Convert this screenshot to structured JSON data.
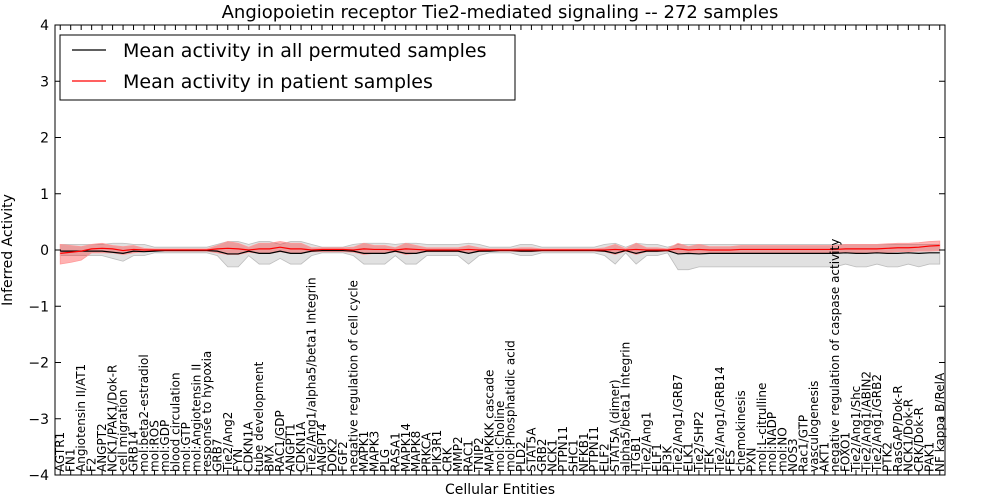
{
  "chart_data": {
    "type": "line",
    "title": "Angiopoietin receptor Tie2-mediated signaling -- 272 samples",
    "xlabel": "Cellular Entities",
    "ylabel": "Inferred Activity",
    "ylim": [
      -4,
      4
    ],
    "yticks": [
      "4",
      "3",
      "2",
      "1",
      "0",
      "−1",
      "−2",
      "−3",
      "−4"
    ],
    "legend_position": "top-left",
    "categories": [
      "AGTR1",
      "FN1",
      "Angiotensin II/AT1",
      "F2",
      "ANGPT2",
      "NCK1/PAK1/Dok-R",
      "cell migration",
      "GRB14",
      "mol:beta2-estradiol",
      "mol:ROS",
      "mol:GDP",
      "blood circulation",
      "mol:GTP",
      "mol:Angiotensin II",
      "response to hypoxia",
      "GRB7",
      "Tie2/Ang2",
      "FYN",
      "CDKN1A",
      "tube development",
      "BMX",
      "RAC1/GDP",
      "ANGPT1",
      "CDKN1A",
      "Tie2/Ang1/alpha5/beta1 Integrin",
      "ANGPT4",
      "DOK2",
      "FGF2",
      "negative regulation of cell cycle",
      "MAPK1",
      "MAPK3",
      "PLG",
      "RASA1",
      "MAPK14",
      "MAPK8",
      "PRKCA",
      "PIK3R1",
      "CRK",
      "MMP2",
      "RAC1",
      "TNIP2",
      "MAPKKK cascade",
      "mol:Choline",
      "mol:Phosphatidic acid",
      "PLD2",
      "STAT5A",
      "GRB2",
      "NCK1",
      "PTPN11",
      "SHC1",
      "NFKB1",
      "PTPN11",
      "ELF2",
      "STAT5A (dimer)",
      "alpha5/beta1 Integrin",
      "ITGB1",
      "Tie2/Ang1",
      "ELF1",
      "PI3K",
      "Tie2/Ang1/GRB7",
      "ELK1",
      "Tie2/SHP2",
      "TEK",
      "Tie2/Ang1/GRB14",
      "FES",
      "chemokinesis",
      "PXN",
      "mol:L-citrulline",
      "mol:NADP",
      "mol:NO",
      "NOS3",
      "Rac1/GTP",
      "vasculogenesis",
      "AKT1",
      "negative regulation of caspase activity",
      "FOXO1",
      "Tie2/Ang1/Shc",
      "Tie2/Ang1/ABIN2",
      "Tie2/Ang1/GRB2",
      "PTK2",
      "RasGAP/Dok-R",
      "NCK1/Dok-R",
      "CRK/Dok-R",
      "PAK1",
      "NF kappa B/RelA"
    ],
    "series": [
      {
        "name": "Mean activity in all permuted samples",
        "color": "#000000",
        "values": [
          -0.02,
          -0.02,
          -0.02,
          -0.02,
          -0.02,
          -0.04,
          -0.06,
          -0.02,
          -0.03,
          -0.02,
          -0.01,
          -0.01,
          -0.01,
          -0.01,
          -0.01,
          -0.02,
          -0.07,
          -0.07,
          -0.02,
          -0.06,
          -0.06,
          -0.02,
          -0.06,
          -0.06,
          -0.02,
          -0.01,
          -0.01,
          -0.01,
          -0.02,
          -0.06,
          -0.06,
          -0.06,
          -0.02,
          -0.06,
          -0.06,
          -0.02,
          -0.02,
          -0.02,
          -0.02,
          -0.06,
          -0.02,
          -0.02,
          -0.01,
          -0.01,
          -0.02,
          -0.02,
          -0.01,
          -0.01,
          -0.01,
          -0.01,
          -0.01,
          -0.01,
          -0.02,
          -0.06,
          -0.01,
          -0.06,
          -0.02,
          -0.02,
          -0.01,
          -0.07,
          -0.06,
          -0.07,
          -0.06,
          -0.06,
          -0.06,
          -0.06,
          -0.06,
          -0.06,
          -0.06,
          -0.06,
          -0.06,
          -0.06,
          -0.06,
          -0.06,
          -0.06,
          -0.05,
          -0.06,
          -0.06,
          -0.05,
          -0.06,
          -0.06,
          -0.05,
          -0.06,
          -0.05,
          -0.05
        ],
        "lower": [
          -0.1,
          -0.1,
          -0.1,
          -0.1,
          -0.1,
          -0.15,
          -0.2,
          -0.1,
          -0.1,
          -0.05,
          -0.05,
          -0.05,
          -0.05,
          -0.05,
          -0.05,
          -0.1,
          -0.3,
          -0.3,
          -0.1,
          -0.25,
          -0.25,
          -0.15,
          -0.25,
          -0.25,
          -0.1,
          -0.05,
          -0.05,
          -0.05,
          -0.1,
          -0.25,
          -0.25,
          -0.25,
          -0.1,
          -0.25,
          -0.25,
          -0.1,
          -0.1,
          -0.1,
          -0.1,
          -0.25,
          -0.1,
          -0.05,
          -0.05,
          -0.05,
          -0.1,
          -0.1,
          -0.05,
          -0.05,
          -0.05,
          -0.05,
          -0.05,
          -0.05,
          -0.1,
          -0.25,
          -0.05,
          -0.25,
          -0.1,
          -0.1,
          -0.05,
          -0.35,
          -0.35,
          -0.3,
          -0.3,
          -0.3,
          -0.3,
          -0.3,
          -0.3,
          -0.3,
          -0.3,
          -0.3,
          -0.3,
          -0.3,
          -0.3,
          -0.3,
          -0.3,
          -0.25,
          -0.3,
          -0.3,
          -0.25,
          -0.3,
          -0.3,
          -0.25,
          -0.3,
          -0.25,
          -0.25
        ],
        "upper": [
          0.1,
          0.1,
          0.1,
          0.1,
          0.1,
          0.12,
          0.12,
          0.1,
          0.1,
          0.05,
          0.05,
          0.05,
          0.05,
          0.05,
          0.05,
          0.1,
          0.15,
          0.15,
          0.1,
          0.15,
          0.15,
          0.1,
          0.15,
          0.15,
          0.1,
          0.05,
          0.05,
          0.05,
          0.1,
          0.12,
          0.12,
          0.12,
          0.1,
          0.12,
          0.12,
          0.1,
          0.1,
          0.1,
          0.1,
          0.12,
          0.1,
          0.05,
          0.05,
          0.05,
          0.1,
          0.1,
          0.05,
          0.05,
          0.05,
          0.05,
          0.05,
          0.05,
          0.1,
          0.12,
          0.05,
          0.12,
          0.1,
          0.1,
          0.05,
          0.1,
          0.1,
          0.1,
          0.1,
          0.1,
          0.1,
          0.1,
          0.1,
          0.1,
          0.1,
          0.1,
          0.1,
          0.1,
          0.1,
          0.1,
          0.1,
          0.1,
          0.1,
          0.1,
          0.1,
          0.1,
          0.1,
          0.1,
          0.1,
          0.1,
          0.1
        ]
      },
      {
        "name": "Mean activity in patient samples",
        "color": "#ff0000",
        "values": [
          -0.06,
          -0.04,
          -0.02,
          0.02,
          0.03,
          0.02,
          -0.01,
          0.01,
          0.0,
          0.0,
          0.0,
          0.0,
          0.0,
          0.0,
          0.0,
          0.02,
          0.03,
          0.02,
          0.0,
          0.02,
          0.02,
          0.05,
          0.02,
          0.02,
          0.0,
          0.01,
          0.01,
          0.01,
          0.0,
          0.02,
          0.01,
          0.01,
          0.0,
          0.02,
          0.01,
          0.0,
          0.0,
          0.0,
          0.0,
          0.01,
          0.0,
          0.0,
          0.0,
          0.0,
          0.0,
          0.0,
          0.0,
          0.0,
          0.0,
          0.0,
          0.0,
          0.0,
          0.0,
          0.01,
          0.0,
          0.01,
          0.0,
          0.0,
          0.0,
          0.02,
          0.0,
          0.01,
          0.0,
          0.0,
          0.0,
          0.01,
          0.01,
          0.01,
          0.01,
          0.01,
          0.01,
          0.01,
          0.01,
          0.01,
          0.01,
          0.02,
          0.02,
          0.02,
          0.02,
          0.03,
          0.04,
          0.04,
          0.05,
          0.07,
          0.08
        ],
        "lower": [
          -0.25,
          -0.22,
          -0.18,
          -0.05,
          -0.05,
          -0.05,
          -0.08,
          -0.05,
          -0.03,
          -0.02,
          -0.02,
          -0.02,
          -0.02,
          -0.02,
          -0.02,
          -0.05,
          -0.08,
          -0.08,
          -0.04,
          -0.06,
          -0.06,
          -0.03,
          -0.06,
          -0.06,
          -0.03,
          -0.03,
          -0.03,
          -0.03,
          -0.04,
          -0.08,
          -0.06,
          -0.06,
          -0.03,
          -0.08,
          -0.06,
          -0.03,
          -0.03,
          -0.03,
          -0.03,
          -0.06,
          -0.03,
          -0.02,
          -0.02,
          -0.02,
          -0.03,
          -0.03,
          -0.02,
          -0.02,
          -0.02,
          -0.02,
          -0.02,
          -0.02,
          -0.03,
          -0.08,
          -0.02,
          -0.08,
          -0.03,
          -0.03,
          -0.02,
          -0.06,
          -0.05,
          -0.06,
          -0.05,
          -0.05,
          -0.05,
          -0.05,
          -0.05,
          -0.05,
          -0.05,
          -0.05,
          -0.05,
          -0.05,
          -0.05,
          -0.05,
          -0.05,
          -0.05,
          -0.05,
          -0.04,
          -0.04,
          -0.04,
          -0.03,
          -0.03,
          -0.02,
          -0.02,
          -0.01
        ],
        "upper": [
          0.1,
          0.08,
          0.06,
          0.1,
          0.12,
          0.08,
          0.06,
          0.08,
          0.03,
          0.02,
          0.02,
          0.02,
          0.02,
          0.02,
          0.02,
          0.08,
          0.15,
          0.12,
          0.05,
          0.12,
          0.12,
          0.15,
          0.12,
          0.12,
          0.04,
          0.04,
          0.04,
          0.04,
          0.05,
          0.12,
          0.08,
          0.08,
          0.04,
          0.12,
          0.08,
          0.04,
          0.04,
          0.04,
          0.04,
          0.08,
          0.04,
          0.02,
          0.02,
          0.02,
          0.04,
          0.04,
          0.02,
          0.02,
          0.02,
          0.02,
          0.02,
          0.02,
          0.04,
          0.1,
          0.02,
          0.12,
          0.04,
          0.04,
          0.02,
          0.12,
          0.06,
          0.1,
          0.06,
          0.06,
          0.06,
          0.08,
          0.08,
          0.08,
          0.08,
          0.08,
          0.08,
          0.08,
          0.08,
          0.08,
          0.08,
          0.1,
          0.1,
          0.1,
          0.1,
          0.11,
          0.12,
          0.12,
          0.13,
          0.15,
          0.16
        ]
      }
    ]
  }
}
